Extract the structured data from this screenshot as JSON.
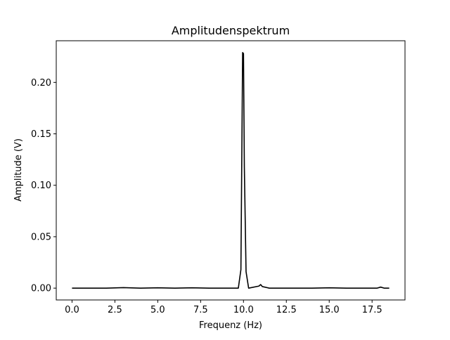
{
  "chart_data": {
    "type": "line",
    "title": "Amplitudenspektrum",
    "xlabel": "Frequenz (Hz)",
    "ylabel": "Amplitude  (V)",
    "xlim": [
      -0.92,
      19.42
    ],
    "ylim": [
      -0.0115,
      0.2405
    ],
    "xticks": [
      0.0,
      2.5,
      5.0,
      7.5,
      10.0,
      12.5,
      15.0,
      17.5
    ],
    "xtick_labels": [
      "0.0",
      "2.5",
      "5.0",
      "7.5",
      "10.0",
      "12.5",
      "15.0",
      "17.5"
    ],
    "yticks": [
      0.0,
      0.05,
      0.1,
      0.15,
      0.2
    ],
    "ytick_labels": [
      "0.00",
      "0.05",
      "0.10",
      "0.15",
      "0.20"
    ],
    "grid": false,
    "line_color": "#000000",
    "series": [
      {
        "x": [
          0.0,
          1.0,
          2.0,
          3.0,
          4.0,
          5.0,
          6.0,
          7.0,
          8.0,
          9.0,
          9.7,
          9.85,
          9.95,
          10.0,
          10.05,
          10.15,
          10.3,
          10.9,
          11.0,
          11.1,
          11.5,
          12.0,
          13.0,
          14.0,
          15.0,
          16.0,
          17.0,
          17.8,
          18.0,
          18.2,
          18.5
        ],
        "y": [
          0.0,
          0.0,
          0.0,
          0.0005,
          0.0,
          0.0003,
          0.0,
          0.0003,
          0.0,
          0.0,
          0.0,
          0.018,
          0.229,
          0.228,
          0.118,
          0.016,
          0.0,
          0.002,
          0.0035,
          0.0015,
          0.0,
          0.0,
          0.0,
          0.0,
          0.0003,
          0.0,
          0.0,
          0.0,
          0.001,
          0.0,
          0.0
        ]
      }
    ]
  }
}
